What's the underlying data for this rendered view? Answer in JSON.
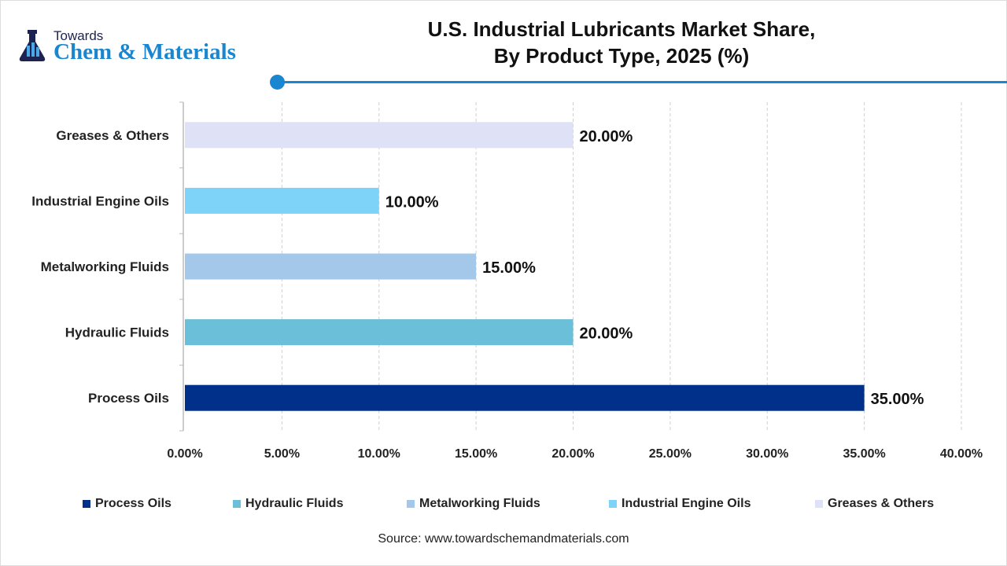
{
  "logo": {
    "line1": "Towards",
    "line2": "Chem & Materials"
  },
  "title_lines": [
    "U.S. Industrial Lubricants Market Share,",
    "By Product Type, 2025 (%)"
  ],
  "source": "Source: www.towardschemandmaterials.com",
  "chart_data": {
    "type": "bar",
    "orientation": "horizontal",
    "title": "U.S. Industrial Lubricants Market Share, By Product Type, 2025 (%)",
    "categories": [
      "Process Oils",
      "Hydraulic Fluids",
      "Metalworking Fluids",
      "Industrial Engine Oils",
      "Greases & Others"
    ],
    "values": [
      35,
      20,
      15,
      10,
      20
    ],
    "data_labels": [
      "35.00%",
      "20.00%",
      "15.00%",
      "10.00%",
      "20.00%"
    ],
    "colors": [
      "#00308a",
      "#6bbfd9",
      "#a4c8ea",
      "#7dd3f8",
      "#dfe1f6"
    ],
    "xlim": [
      0,
      40
    ],
    "xticks": [
      "0.00%",
      "5.00%",
      "10.00%",
      "15.00%",
      "20.00%",
      "25.00%",
      "30.00%",
      "35.00%",
      "40.00%"
    ],
    "grid": "vertical dashed",
    "legend": "bottom"
  }
}
